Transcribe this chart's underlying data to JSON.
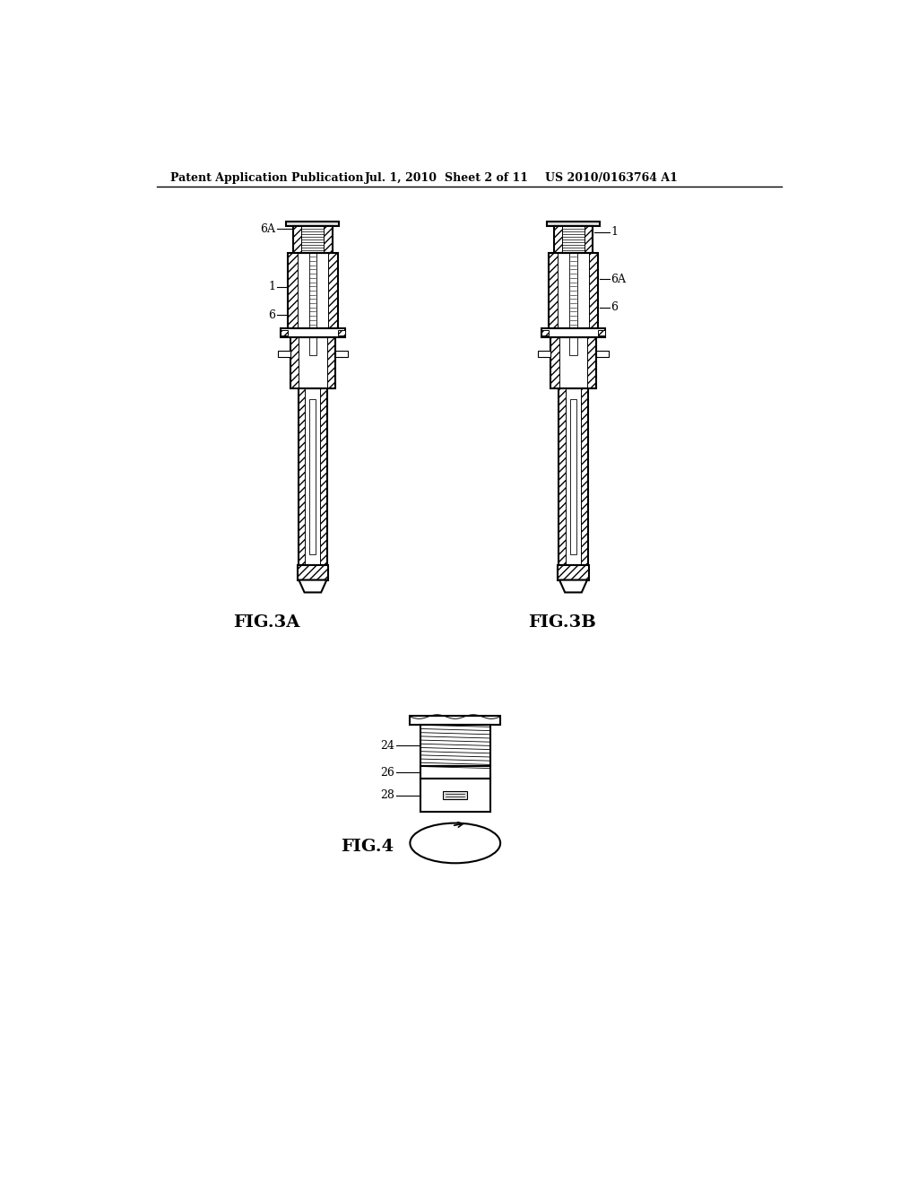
{
  "background_color": "#ffffff",
  "header_text": "Patent Application Publication",
  "header_date": "Jul. 1, 2010",
  "header_sheet": "Sheet 2 of 11",
  "header_patent": "US 2010/0163764 A1",
  "fig3a_label": "FIG.3A",
  "fig3b_label": "FIG.3B",
  "fig4_label": "FIG.4",
  "line_color": "#000000"
}
